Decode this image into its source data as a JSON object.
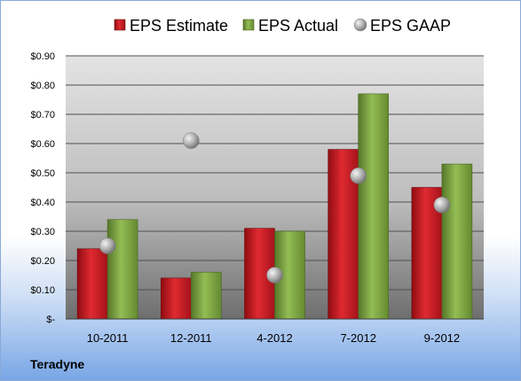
{
  "company": "Teradyne",
  "colors": {
    "estimate": "#c0141c",
    "actual": "#77a03a",
    "gaap": "#a8a8a8"
  },
  "chart_data": {
    "type": "bar",
    "categories": [
      "10-2011",
      "12-2011",
      "4-2012",
      "7-2012",
      "9-2012"
    ],
    "series": [
      {
        "name": "EPS Estimate",
        "kind": "bar",
        "values": [
          0.24,
          0.14,
          0.31,
          0.58,
          0.45
        ]
      },
      {
        "name": "EPS Actual",
        "kind": "bar",
        "values": [
          0.34,
          0.16,
          0.3,
          0.77,
          0.53
        ]
      },
      {
        "name": "EPS GAAP",
        "kind": "marker",
        "values": [
          0.25,
          0.61,
          0.15,
          0.49,
          0.39
        ]
      }
    ],
    "yticks": [
      {
        "value": 0,
        "label": "$-"
      },
      {
        "value": 0.1,
        "label": "$0.10"
      },
      {
        "value": 0.2,
        "label": "$0.20"
      },
      {
        "value": 0.3,
        "label": "$0.30"
      },
      {
        "value": 0.4,
        "label": "$0.40"
      },
      {
        "value": 0.5,
        "label": "$0.50"
      },
      {
        "value": 0.6,
        "label": "$0.60"
      },
      {
        "value": 0.7,
        "label": "$0.70"
      },
      {
        "value": 0.8,
        "label": "$0.80"
      },
      {
        "value": 0.9,
        "label": "$0.90"
      }
    ],
    "ylim": [
      0,
      0.9
    ],
    "grid": true,
    "legend": "top"
  }
}
